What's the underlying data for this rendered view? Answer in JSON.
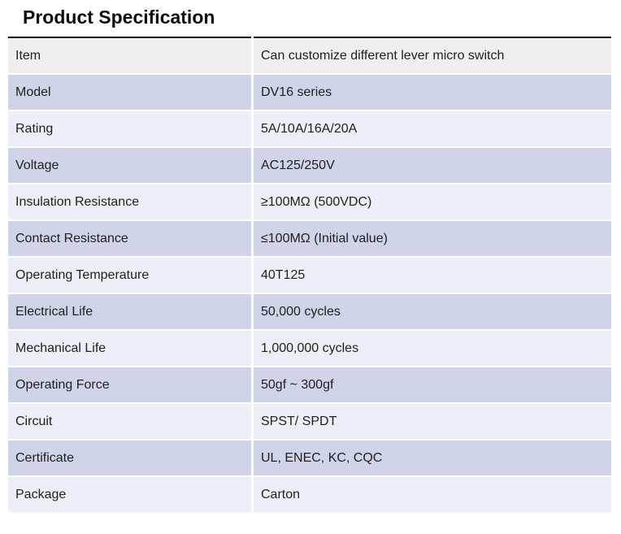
{
  "page_title": "Product Specification",
  "table": {
    "header": {
      "label": "Item",
      "value": "Can customize different lever micro switch"
    },
    "rows": [
      {
        "label": "Model",
        "value": "DV16 series"
      },
      {
        "label": "Rating",
        "value": "5A/10A/16A/20A"
      },
      {
        "label": "Voltage",
        "value": "AC125/250V"
      },
      {
        "label": "Insulation Resistance",
        "value": "≥100MΩ (500VDC)"
      },
      {
        "label": "Contact Resistance",
        "value": "≤100MΩ (Initial value)"
      },
      {
        "label": "Operating Temperature",
        "value": "40T125"
      },
      {
        "label": "Electrical Life",
        "value": "50,000 cycles"
      },
      {
        "label": "Mechanical Life",
        "value": "1,000,000 cycles"
      },
      {
        "label": "Operating Force",
        "value": "50gf ~ 300gf"
      },
      {
        "label": "Circuit",
        "value": "SPST/ SPDT"
      },
      {
        "label": "Certificate",
        "value": "UL, ENEC, KC, CQC"
      },
      {
        "label": "Package",
        "value": "Carton"
      }
    ],
    "colors": {
      "header_bg": "#efefef",
      "top_border": "#000000",
      "row_alt": "#cfd4e8",
      "row_base": "#edeff7",
      "text": "#1f1f1f"
    }
  }
}
